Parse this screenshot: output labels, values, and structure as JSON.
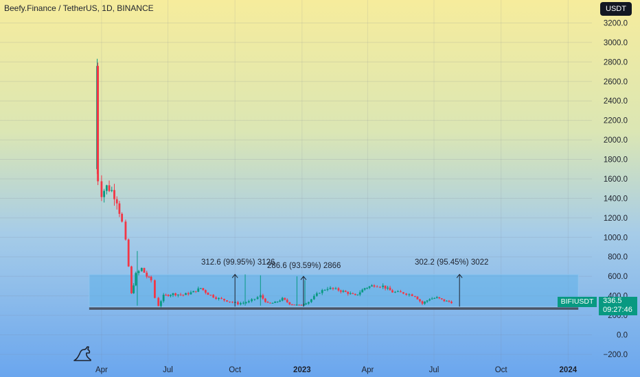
{
  "header": {
    "title": "Beefy.Finance / TetherUS, 1D, BINANCE",
    "currency_label": "USDT"
  },
  "price_tag": {
    "symbol": "BIFIUSDT",
    "price": "336.5",
    "countdown": "09:27:46"
  },
  "icons": {
    "logo": "tradingview-dino-icon"
  },
  "colors": {
    "up": "#089981",
    "down": "#f23645",
    "box_fill": "#5fb0e8",
    "box_edge": "#8fc4ee",
    "support_line": "#4a5566",
    "arrow": "#1e222d"
  },
  "chart_data": {
    "type": "candlestick",
    "title": "Beefy.Finance / TetherUS, 1D, BINANCE",
    "x_axis": {
      "ticks": [
        "Apr",
        "Jul",
        "Oct",
        "2023",
        "Apr",
        "Jul",
        "Oct",
        "2024"
      ],
      "bold_ticks": [
        "2023",
        "2024"
      ]
    },
    "y_axis": {
      "position": "right",
      "ticks": [
        -200,
        0,
        200,
        400,
        600,
        800,
        1000,
        1200,
        1400,
        1600,
        1800,
        2000,
        2200,
        2400,
        2600,
        2800,
        3000,
        3200
      ],
      "tick_labels": [
        "−200.0",
        "0.0",
        "200.0",
        "400.0",
        "600.0",
        "800.0",
        "1000.0",
        "1200.0",
        "1400.0",
        "1600.0",
        "1800.0",
        "2000.0",
        "2200.0",
        "2400.0",
        "2600.0",
        "2800.0",
        "3000.0",
        "3200.0"
      ],
      "range": [
        -260,
        3300
      ]
    },
    "price_path": [
      [
        "2022-03-25",
        1700
      ],
      [
        "2022-03-26",
        2760
      ],
      [
        "2022-03-27",
        1600
      ],
      [
        "2022-04-01",
        1450
      ],
      [
        "2022-04-08",
        1520
      ],
      [
        "2022-04-15",
        1480
      ],
      [
        "2022-04-22",
        1380
      ],
      [
        "2022-04-29",
        1150
      ],
      [
        "2022-05-04",
        950
      ],
      [
        "2022-05-08",
        700
      ],
      [
        "2022-05-12",
        420
      ],
      [
        "2022-05-18",
        620
      ],
      [
        "2022-05-26",
        680
      ],
      [
        "2022-06-02",
        600
      ],
      [
        "2022-06-08",
        560
      ],
      [
        "2022-06-13",
        380
      ],
      [
        "2022-06-18",
        300
      ],
      [
        "2022-06-25",
        400
      ],
      [
        "2022-07-08",
        420
      ],
      [
        "2022-07-22",
        410
      ],
      [
        "2022-08-05",
        440
      ],
      [
        "2022-08-15",
        480
      ],
      [
        "2022-08-25",
        420
      ],
      [
        "2022-09-05",
        380
      ],
      [
        "2022-09-20",
        350
      ],
      [
        "2022-10-05",
        320
      ],
      [
        "2022-10-20",
        340
      ],
      [
        "2022-11-05",
        400
      ],
      [
        "2022-11-15",
        320
      ],
      [
        "2022-11-25",
        330
      ],
      [
        "2022-12-05",
        370
      ],
      [
        "2022-12-15",
        320
      ],
      [
        "2022-12-28",
        300
      ],
      [
        "2023-01-10",
        340
      ],
      [
        "2023-01-25",
        440
      ],
      [
        "2023-02-05",
        480
      ],
      [
        "2023-02-20",
        460
      ],
      [
        "2023-03-05",
        430
      ],
      [
        "2023-03-15",
        400
      ],
      [
        "2023-03-28",
        480
      ],
      [
        "2023-04-10",
        510
      ],
      [
        "2023-04-22",
        500
      ],
      [
        "2023-05-05",
        440
      ],
      [
        "2023-05-20",
        430
      ],
      [
        "2023-06-05",
        400
      ],
      [
        "2023-06-15",
        320
      ],
      [
        "2023-06-25",
        370
      ],
      [
        "2023-07-05",
        380
      ],
      [
        "2023-07-15",
        350
      ],
      [
        "2023-07-25",
        335
      ]
    ],
    "range_box": {
      "from": "2022-03-15",
      "to": "2024-01-15",
      "low": 290,
      "high": 620
    },
    "support_line": {
      "from": "2022-03-15",
      "to": "2024-01-15",
      "value": 270
    },
    "annotations": [
      {
        "text": "312.6 (99.95%) 3126",
        "date": "2022-10-01",
        "from": 290,
        "to": 620
      },
      {
        "text": "286.6 (93.59%) 2866",
        "date": "2023-01-03",
        "from": 290,
        "to": 600
      },
      {
        "text": "302.2 (95.45%) 3022",
        "date": "2023-08-05",
        "from": 290,
        "to": 620
      }
    ],
    "last_price": 336.5
  }
}
